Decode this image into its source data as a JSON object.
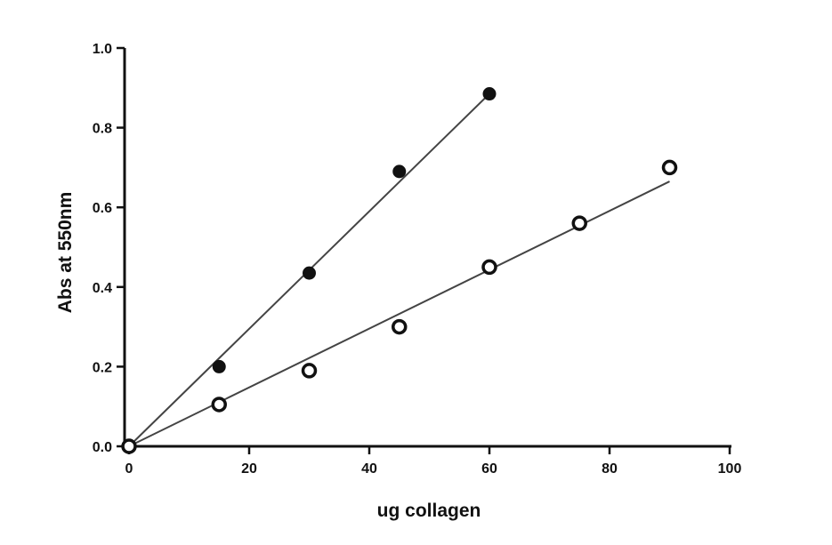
{
  "chart_data": {
    "type": "scatter",
    "title": "",
    "xlabel": "ug collagen",
    "ylabel": "Abs at 550nm",
    "xlim": [
      0,
      100
    ],
    "ylim": [
      0,
      1.0
    ],
    "x_ticks": [
      0,
      20,
      40,
      60,
      80,
      100
    ],
    "y_ticks": [
      0.0,
      0.2,
      0.4,
      0.6,
      0.8,
      1.0
    ],
    "x_tick_labels": [
      "0",
      "20",
      "40",
      "60",
      "80",
      "100"
    ],
    "y_tick_labels": [
      "0.0",
      "0.2",
      "0.4",
      "0.6",
      "0.8",
      "1.0"
    ],
    "grid": false,
    "legend": "none",
    "series": [
      {
        "marker": "filled-circle",
        "color": "#111111",
        "points": [
          [
            0,
            0.0
          ],
          [
            15,
            0.2
          ],
          [
            30,
            0.435
          ],
          [
            45,
            0.69
          ],
          [
            60,
            0.885
          ]
        ],
        "fit_line": [
          [
            0,
            0.0
          ],
          [
            60,
            0.885
          ]
        ]
      },
      {
        "marker": "open-circle",
        "color": "#111111",
        "points": [
          [
            0,
            0.0
          ],
          [
            15,
            0.105
          ],
          [
            30,
            0.19
          ],
          [
            45,
            0.3
          ],
          [
            60,
            0.45
          ],
          [
            75,
            0.56
          ],
          [
            90,
            0.7
          ]
        ],
        "fit_line": [
          [
            0,
            0.0
          ],
          [
            90,
            0.665
          ]
        ]
      }
    ]
  }
}
